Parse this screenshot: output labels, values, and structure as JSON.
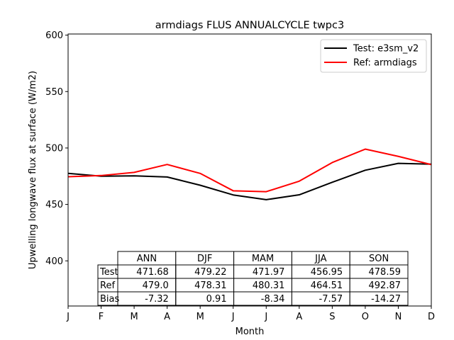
{
  "chart_data": {
    "type": "line",
    "title": "armdiags FLUS ANNUALCYCLE twpc3",
    "xlabel": "Month",
    "ylabel": "Upwelling longwave flux at surface (W/m2)",
    "x_ticks": [
      "J",
      "F",
      "M",
      "A",
      "M",
      "J",
      "J",
      "A",
      "S",
      "O",
      "N",
      "D"
    ],
    "y_ticks": [
      400,
      450,
      500,
      550,
      600
    ],
    "ylim": [
      360,
      601
    ],
    "grid": false,
    "legend_position": "upper right",
    "series": [
      {
        "name": "Test: e3sm_v2",
        "color": "#000000",
        "values": [
          477.5,
          475.0,
          475.3,
          474.3,
          467.0,
          458.4,
          454.2,
          458.5,
          469.6,
          480.3,
          486.4,
          485.7
        ]
      },
      {
        "name": "Ref: armdiags",
        "color": "#ff0000",
        "values": [
          474.5,
          475.6,
          478.4,
          485.4,
          477.5,
          462.1,
          461.3,
          470.6,
          487.1,
          499.0,
          492.6,
          485.3
        ]
      }
    ],
    "table": {
      "columns": [
        "ANN",
        "DJF",
        "MAM",
        "JJA",
        "SON"
      ],
      "rows": [
        {
          "label": "Test",
          "values": [
            "471.68",
            "479.22",
            "471.97",
            "456.95",
            "478.59"
          ]
        },
        {
          "label": "Ref",
          "values": [
            "479.0",
            "478.31",
            "480.31",
            "464.51",
            "492.87"
          ]
        },
        {
          "label": "Bias",
          "values": [
            "-7.32",
            "0.91",
            "-8.34",
            "-7.57",
            "-14.27"
          ]
        }
      ]
    }
  }
}
